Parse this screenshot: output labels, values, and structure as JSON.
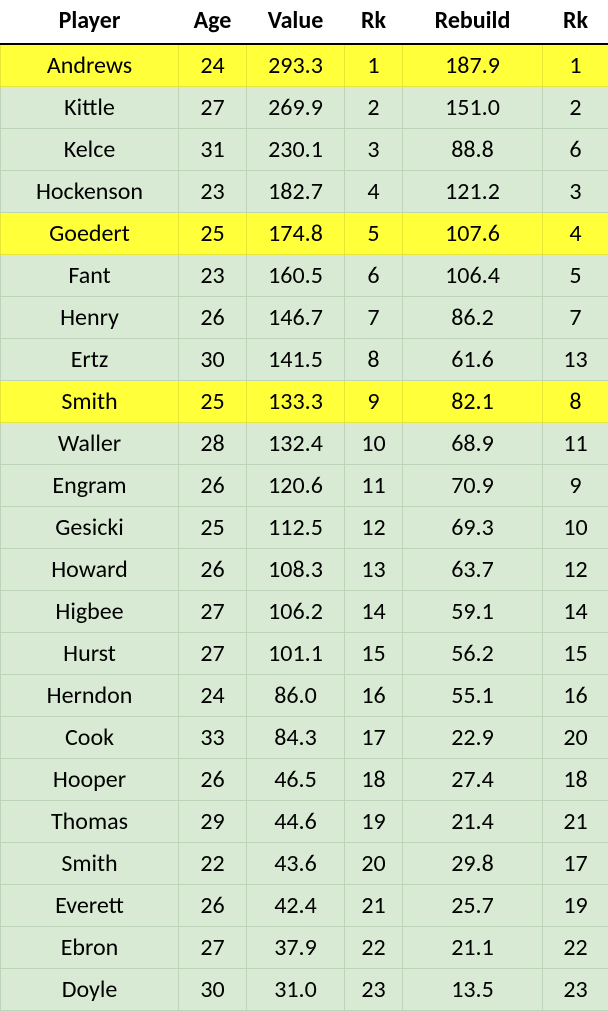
{
  "table": {
    "columns": [
      "Player",
      "Age",
      "Value",
      "Rk",
      "Rebuild",
      "Rk"
    ],
    "highlight_rows": [
      0,
      4,
      8
    ],
    "rows": [
      [
        "Andrews",
        "24",
        "293.3",
        "1",
        "187.9",
        "1"
      ],
      [
        "Kittle",
        "27",
        "269.9",
        "2",
        "151.0",
        "2"
      ],
      [
        "Kelce",
        "31",
        "230.1",
        "3",
        "88.8",
        "6"
      ],
      [
        "Hockenson",
        "23",
        "182.7",
        "4",
        "121.2",
        "3"
      ],
      [
        "Goedert",
        "25",
        "174.8",
        "5",
        "107.6",
        "4"
      ],
      [
        "Fant",
        "23",
        "160.5",
        "6",
        "106.4",
        "5"
      ],
      [
        "Henry",
        "26",
        "146.7",
        "7",
        "86.2",
        "7"
      ],
      [
        "Ertz",
        "30",
        "141.5",
        "8",
        "61.6",
        "13"
      ],
      [
        "Smith",
        "25",
        "133.3",
        "9",
        "82.1",
        "8"
      ],
      [
        "Waller",
        "28",
        "132.4",
        "10",
        "68.9",
        "11"
      ],
      [
        "Engram",
        "26",
        "120.6",
        "11",
        "70.9",
        "9"
      ],
      [
        "Gesicki",
        "25",
        "112.5",
        "12",
        "69.3",
        "10"
      ],
      [
        "Howard",
        "26",
        "108.3",
        "13",
        "63.7",
        "12"
      ],
      [
        "Higbee",
        "27",
        "106.2",
        "14",
        "59.1",
        "14"
      ],
      [
        "Hurst",
        "27",
        "101.1",
        "15",
        "56.2",
        "15"
      ],
      [
        "Herndon",
        "24",
        "86.0",
        "16",
        "55.1",
        "16"
      ],
      [
        "Cook",
        "33",
        "84.3",
        "17",
        "22.9",
        "20"
      ],
      [
        "Hooper",
        "26",
        "46.5",
        "18",
        "27.4",
        "18"
      ],
      [
        "Thomas",
        "29",
        "44.6",
        "19",
        "21.4",
        "21"
      ],
      [
        "Smith",
        "22",
        "43.6",
        "20",
        "29.8",
        "17"
      ],
      [
        "Everett",
        "26",
        "42.4",
        "21",
        "25.7",
        "19"
      ],
      [
        "Ebron",
        "27",
        "37.9",
        "22",
        "21.1",
        "22"
      ],
      [
        "Doyle",
        "30",
        "31.0",
        "23",
        "13.5",
        "23"
      ]
    ],
    "colors": {
      "row_bg": "#d8ead3",
      "highlight_bg": "#ffff3a",
      "header_border": "#000000"
    },
    "fontsize": 24
  }
}
